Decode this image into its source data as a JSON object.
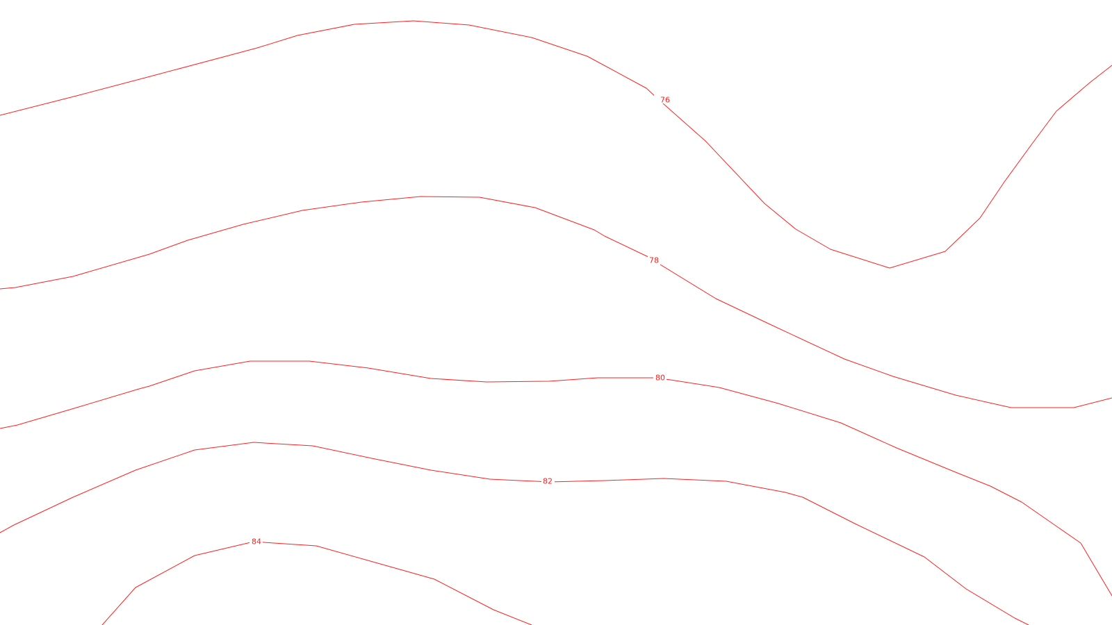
{
  "map": {
    "line_color": "#ff2020",
    "background_color": "#ffffff",
    "contours": [
      {
        "level": "76"
      },
      {
        "level": "78"
      },
      {
        "level": "80"
      },
      {
        "level": "82"
      },
      {
        "level": "84"
      }
    ]
  }
}
